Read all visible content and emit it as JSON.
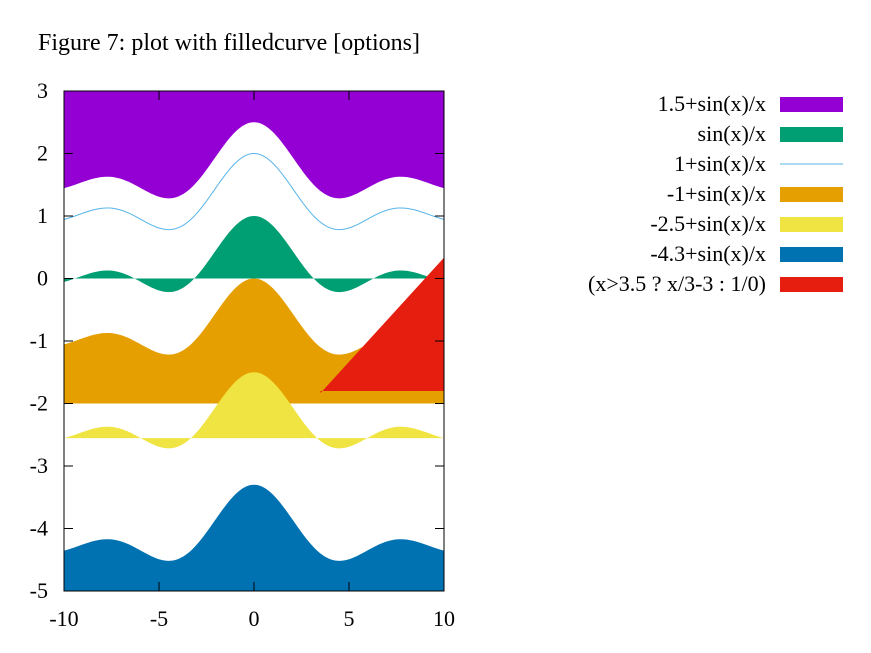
{
  "chart_data": {
    "type": "area",
    "title": "Figure 7: plot with filledcurve [options]",
    "xlabel": "",
    "ylabel": "",
    "xlim": [
      -10,
      10
    ],
    "ylim": [
      -5,
      3
    ],
    "xticks": [
      -10,
      -5,
      0,
      5,
      10
    ],
    "yticks": [
      -5,
      -4,
      -3,
      -2,
      -1,
      0,
      1,
      2,
      3
    ],
    "grid": false,
    "legend_position": "top-right",
    "series": [
      {
        "name": "1.5+sin(x)/x",
        "style": "filled above to y2 (top)",
        "color": "#9400d3",
        "offset": 1.5
      },
      {
        "name": "sin(x)/x",
        "style": "filled to y=0",
        "color": "#009e73",
        "offset": 0
      },
      {
        "name": "1+sin(x)/x",
        "style": "line",
        "color": "#56b4e9",
        "offset": 1
      },
      {
        "name": "-1+sin(x)/x",
        "style": "filled to y=-2",
        "color": "#e69f00",
        "offset": -1
      },
      {
        "name": "-2.5+sin(x)/x",
        "style": "filled closed",
        "color": "#f0e442",
        "offset": -2.5
      },
      {
        "name": "-4.3+sin(x)/x",
        "style": "filled to y1 (bottom)",
        "color": "#0072b2",
        "offset": -4.3
      },
      {
        "name": "(x>3.5 ? x/3-3 : 1/0)",
        "style": "filled to y=-1.8",
        "color": "#e51e10",
        "x_start": 3.5
      }
    ]
  }
}
